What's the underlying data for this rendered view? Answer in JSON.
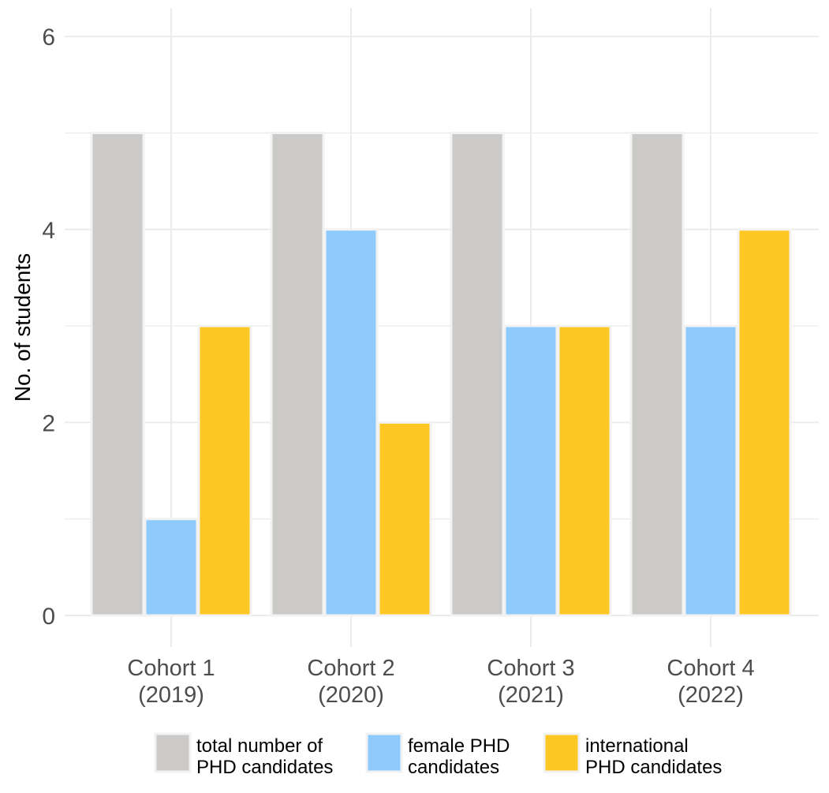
{
  "chart_data": {
    "type": "bar",
    "title": "",
    "xlabel": "",
    "ylabel": "No. of students",
    "ylim": [
      0,
      6.3
    ],
    "yticks": [
      0,
      2,
      4,
      6
    ],
    "grid": true,
    "legend_position": "bottom",
    "categories": [
      [
        "Cohort 1",
        "(2019)"
      ],
      [
        "Cohort 2",
        "(2020)"
      ],
      [
        "Cohort 3",
        "(2021)"
      ],
      [
        "Cohort 4",
        "(2022)"
      ]
    ],
    "series": [
      {
        "name": [
          "total number of",
          "PHD candidates"
        ],
        "color": "#cbcac8",
        "values": [
          5,
          5,
          5,
          5
        ]
      },
      {
        "name": [
          "female PHD",
          "candidates"
        ],
        "color": "#8fcafd",
        "values": [
          1,
          4,
          3,
          3
        ]
      },
      {
        "name": [
          "international",
          "PHD candidates"
        ],
        "color": "#ffc723",
        "values": [
          3,
          2,
          3,
          4
        ]
      }
    ],
    "colors": {
      "grid": "#ebebeb",
      "bar_outline": "#f2f2f2"
    }
  }
}
